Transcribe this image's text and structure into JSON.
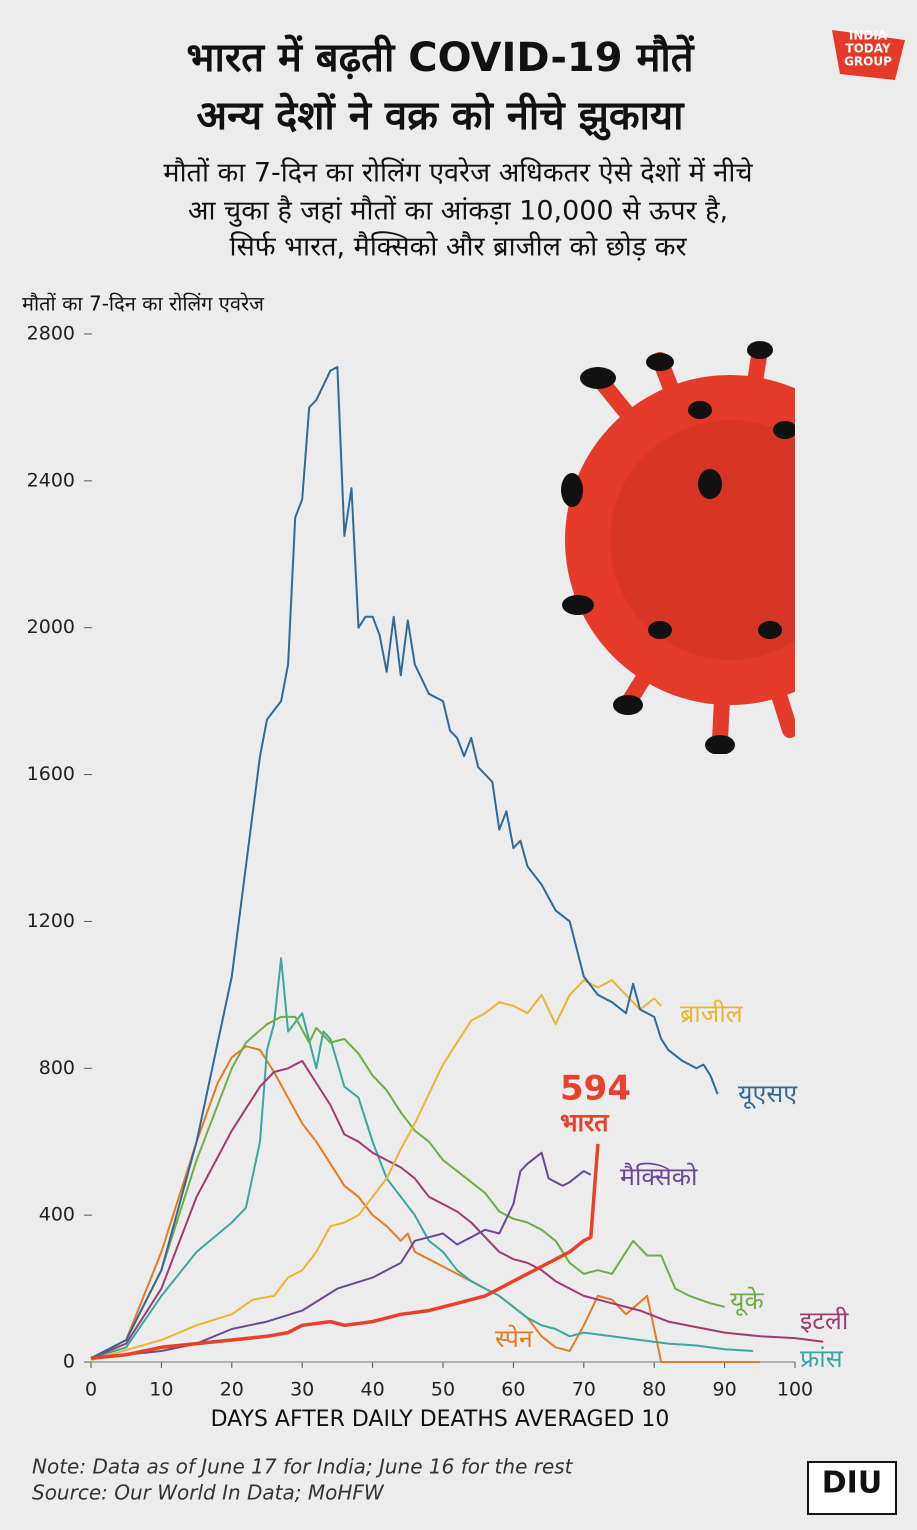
{
  "chart_data": {
    "type": "line",
    "title": [
      "भारत में बढ़ती COVID-19 मौतें",
      "अन्य देशों ने वक्र को नीचे झुकाया"
    ],
    "subtitle": [
      "मौतों का 7-दिन का रोलिंग एवरेज अधिकतर ऐसे देशों में नीचे",
      "आ चुका है जहां मौतों का आंकड़ा 10,000 से ऊपर है,",
      "सिर्फ भारत, मैक्सिको और ब्राजील को छोड़ कर"
    ],
    "y_label": "मौतों का 7-दिन का रोलिंग एवरेज",
    "x_label": "DAYS AFTER DAILY DEATHS AVERAGED 10",
    "notes": [
      "Note: Data as of June 17 for India; June 16 for the rest",
      "Source: Our World In Data; MoHFW"
    ],
    "logos": [
      "INDIA",
      "TODAY",
      "GROUP",
      "DIU"
    ],
    "xlim": [
      0,
      100
    ],
    "xticks": [
      0,
      10,
      20,
      30,
      40,
      50,
      60,
      70,
      80,
      90,
      100
    ],
    "ylim": [
      0,
      2800
    ],
    "yticks": [
      0,
      400,
      800,
      1200,
      1600,
      2000,
      2400,
      2800
    ],
    "series": [
      {
        "name": "यूएसए",
        "color": "#2f6a99",
        "x": [
          0,
          5,
          10,
          15,
          20,
          22,
          24,
          25,
          27,
          28,
          29,
          30,
          31,
          32,
          34,
          35,
          36,
          37,
          38,
          39,
          40,
          41,
          42,
          43,
          44,
          45,
          46,
          48,
          50,
          51,
          52,
          53,
          54,
          55,
          57,
          58,
          59,
          60,
          61,
          62,
          64,
          66,
          68,
          70,
          72,
          74,
          76,
          77,
          78,
          80,
          81,
          82,
          84,
          86,
          87,
          88,
          89
        ],
        "values": [
          10,
          60,
          250,
          600,
          1050,
          1350,
          1650,
          1750,
          1800,
          1900,
          2300,
          2350,
          2600,
          2620,
          2700,
          2710,
          2250,
          2380,
          2000,
          2030,
          2030,
          1980,
          1880,
          2030,
          1870,
          2020,
          1900,
          1820,
          1800,
          1720,
          1700,
          1650,
          1700,
          1620,
          1580,
          1450,
          1500,
          1400,
          1420,
          1350,
          1300,
          1230,
          1200,
          1050,
          1000,
          980,
          950,
          1030,
          960,
          940,
          880,
          850,
          820,
          800,
          810,
          780,
          730
        ]
      },
      {
        "name": "ब्राजील",
        "color": "#e8b730",
        "x": [
          0,
          10,
          15,
          20,
          23,
          26,
          28,
          30,
          32,
          34,
          36,
          38,
          40,
          42,
          44,
          46,
          48,
          50,
          52,
          54,
          56,
          58,
          60,
          62,
          64,
          66,
          68,
          70,
          72,
          74,
          76,
          78,
          80,
          81
        ],
        "values": [
          5,
          60,
          100,
          130,
          170,
          180,
          230,
          250,
          300,
          370,
          380,
          400,
          450,
          500,
          580,
          650,
          730,
          810,
          870,
          930,
          950,
          980,
          970,
          950,
          1000,
          920,
          1000,
          1040,
          1020,
          1040,
          1000,
          960,
          990,
          970
        ]
      },
      {
        "name": "यूके",
        "color": "#6fad45",
        "x": [
          0,
          5,
          10,
          15,
          20,
          22,
          25,
          27,
          29,
          31,
          32,
          34,
          36,
          38,
          40,
          42,
          44,
          46,
          48,
          50,
          52,
          54,
          56,
          58,
          60,
          62,
          64,
          66,
          68,
          70,
          72,
          74,
          76,
          77,
          79,
          81,
          83,
          85,
          88,
          90
        ],
        "values": [
          10,
          60,
          250,
          550,
          800,
          870,
          920,
          940,
          940,
          870,
          910,
          870,
          880,
          840,
          780,
          740,
          680,
          630,
          600,
          550,
          520,
          490,
          460,
          410,
          390,
          380,
          360,
          330,
          270,
          240,
          250,
          240,
          300,
          330,
          290,
          290,
          200,
          180,
          160,
          150
        ]
      },
      {
        "name": "इटली",
        "color": "#a23a72",
        "x": [
          0,
          5,
          10,
          15,
          20,
          24,
          26,
          28,
          30,
          32,
          34,
          36,
          38,
          40,
          42,
          44,
          46,
          48,
          50,
          52,
          54,
          56,
          58,
          60,
          62,
          64,
          66,
          68,
          70,
          74,
          78,
          82,
          86,
          90,
          95,
          100,
          104
        ],
        "values": [
          10,
          50,
          200,
          450,
          630,
          750,
          790,
          800,
          820,
          760,
          700,
          620,
          600,
          570,
          550,
          530,
          500,
          450,
          430,
          410,
          380,
          340,
          300,
          280,
          270,
          250,
          220,
          200,
          180,
          160,
          140,
          110,
          95,
          80,
          70,
          65,
          55
        ]
      },
      {
        "name": "स्पेन",
        "color": "#e47b23",
        "x": [
          0,
          5,
          10,
          15,
          18,
          20,
          22,
          24,
          26,
          28,
          30,
          32,
          34,
          36,
          38,
          40,
          42,
          44,
          45,
          46,
          48,
          50,
          52,
          54,
          56,
          58,
          60,
          62,
          64,
          66,
          68,
          70,
          72,
          74,
          76,
          79,
          81,
          85,
          90,
          95
        ],
        "values": [
          10,
          60,
          300,
          600,
          760,
          830,
          860,
          850,
          790,
          720,
          650,
          600,
          540,
          480,
          450,
          400,
          370,
          330,
          350,
          300,
          280,
          260,
          240,
          220,
          200,
          180,
          150,
          120,
          70,
          40,
          30,
          100,
          180,
          170,
          130,
          180,
          0,
          0,
          0,
          0
        ]
      },
      {
        "name": "फ्रांस",
        "color": "#3aa7a3",
        "x": [
          0,
          5,
          10,
          15,
          20,
          22,
          24,
          25,
          26,
          27,
          28,
          30,
          32,
          33,
          34,
          36,
          38,
          40,
          42,
          44,
          46,
          48,
          50,
          52,
          54,
          56,
          58,
          60,
          62,
          64,
          66,
          68,
          70,
          74,
          78,
          82,
          86,
          90,
          94
        ],
        "values": [
          10,
          40,
          180,
          300,
          380,
          420,
          600,
          850,
          920,
          1100,
          900,
          950,
          800,
          900,
          880,
          750,
          720,
          600,
          500,
          450,
          400,
          330,
          300,
          250,
          220,
          200,
          180,
          150,
          120,
          100,
          90,
          70,
          80,
          70,
          60,
          50,
          45,
          35,
          30
        ]
      },
      {
        "name": "मैक्सिको",
        "color": "#6b4896",
        "x": [
          0,
          5,
          10,
          15,
          20,
          25,
          30,
          35,
          40,
          44,
          46,
          48,
          50,
          52,
          54,
          56,
          58,
          60,
          61,
          62,
          64,
          65,
          66,
          67,
          68,
          70,
          71
        ],
        "values": [
          10,
          20,
          30,
          50,
          90,
          110,
          140,
          200,
          230,
          270,
          330,
          340,
          350,
          320,
          340,
          360,
          350,
          430,
          520,
          540,
          570,
          500,
          490,
          480,
          490,
          520,
          510
        ]
      },
      {
        "name": "भारत",
        "color": "#e8402a",
        "x": [
          0,
          5,
          10,
          15,
          20,
          25,
          28,
          30,
          34,
          36,
          40,
          44,
          48,
          52,
          56,
          60,
          64,
          68,
          70,
          71,
          72
        ],
        "values": [
          10,
          20,
          40,
          50,
          60,
          70,
          80,
          100,
          110,
          100,
          110,
          130,
          140,
          160,
          180,
          220,
          260,
          300,
          330,
          340,
          594
        ]
      }
    ]
  }
}
